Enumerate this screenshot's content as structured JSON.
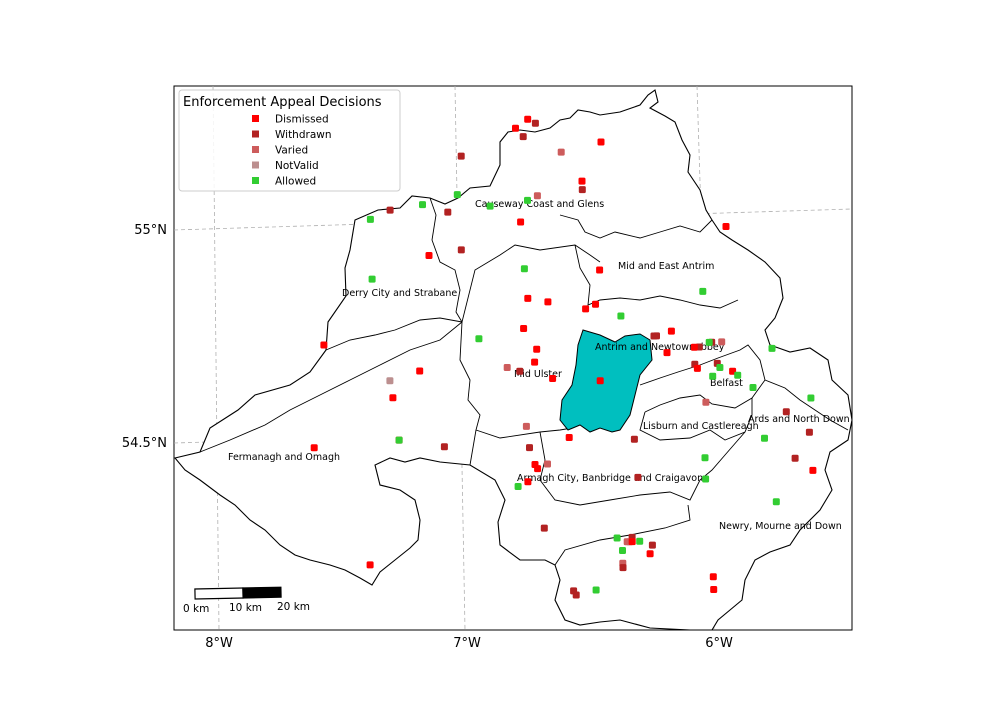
{
  "map": {
    "legend": {
      "title": "Enforcement Appeal Decisions",
      "items": [
        {
          "label": "Dismissed",
          "color": "#ff0000"
        },
        {
          "label": "Withdrawn",
          "color": "#b22222"
        },
        {
          "label": "Varied",
          "color": "#cd5c5c"
        },
        {
          "label": "NotValid",
          "color": "#bc8f8f"
        },
        {
          "label": "Allowed",
          "color": "#32cd32"
        }
      ]
    },
    "axes": {
      "lon_ticks": [
        "8°W",
        "7°W",
        "6°W"
      ],
      "lat_ticks": [
        "55°N",
        "54.5°N"
      ]
    },
    "scalebar": {
      "labels": [
        "0 km",
        "10 km",
        "20 km"
      ]
    },
    "highlight_color": "#00bfbf",
    "districts": [
      "Causeway Coast and Glens",
      "Mid and East Antrim",
      "Derry City and Strabane",
      "Antrim and Newtownabbey",
      "Mid Ulster",
      "Belfast",
      "Ards and North Down",
      "Lisburn and Castlereagh",
      "Fermanagh and Omagh",
      "Armagh City, Banbridge and Craigavon",
      "Newry, Mourne and Down"
    ],
    "points": [
      {
        "t": "Dismissed",
        "lon": -6.78,
        "lat": 55.21
      },
      {
        "t": "Dismissed",
        "lon": -6.73,
        "lat": 55.23
      },
      {
        "t": "Withdrawn",
        "lon": -6.7,
        "lat": 55.22
      },
      {
        "t": "Withdrawn",
        "lon": -6.75,
        "lat": 55.19
      },
      {
        "t": "Varied",
        "lon": -6.6,
        "lat": 55.15
      },
      {
        "t": "Dismissed",
        "lon": -6.44,
        "lat": 55.17
      },
      {
        "t": "Withdrawn",
        "lon": -7.0,
        "lat": 55.15
      },
      {
        "t": "Dismissed",
        "lon": -6.52,
        "lat": 55.08
      },
      {
        "t": "Withdrawn",
        "lon": -6.52,
        "lat": 55.06
      },
      {
        "t": "Allowed",
        "lon": -7.02,
        "lat": 55.06
      },
      {
        "t": "Varied",
        "lon": -6.7,
        "lat": 55.05
      },
      {
        "t": "Allowed",
        "lon": -6.74,
        "lat": 55.04
      },
      {
        "t": "Allowed",
        "lon": -6.89,
        "lat": 55.03
      },
      {
        "t": "Allowed",
        "lon": -7.16,
        "lat": 55.04
      },
      {
        "t": "Withdrawn",
        "lon": -7.29,
        "lat": 55.03
      },
      {
        "t": "Withdrawn",
        "lon": -7.06,
        "lat": 55.02
      },
      {
        "t": "Allowed",
        "lon": -7.37,
        "lat": 55.01
      },
      {
        "t": "Dismissed",
        "lon": -6.77,
        "lat": 54.99
      },
      {
        "t": "Dismissed",
        "lon": -5.95,
        "lat": 54.96
      },
      {
        "t": "Withdrawn",
        "lon": -7.01,
        "lat": 54.93
      },
      {
        "t": "Dismissed",
        "lon": -7.14,
        "lat": 54.92
      },
      {
        "t": "Allowed",
        "lon": -6.76,
        "lat": 54.88
      },
      {
        "t": "Allowed",
        "lon": -7.37,
        "lat": 54.87
      },
      {
        "t": "Dismissed",
        "lon": -6.46,
        "lat": 54.87
      },
      {
        "t": "Dismissed",
        "lon": -6.75,
        "lat": 54.81
      },
      {
        "t": "Dismissed",
        "lon": -6.67,
        "lat": 54.8
      },
      {
        "t": "Allowed",
        "lon": -6.05,
        "lat": 54.81
      },
      {
        "t": "Dismissed",
        "lon": -6.48,
        "lat": 54.79
      },
      {
        "t": "Dismissed",
        "lon": -6.52,
        "lat": 54.78
      },
      {
        "t": "Allowed",
        "lon": -6.38,
        "lat": 54.76
      },
      {
        "t": "Dismissed",
        "lon": -6.77,
        "lat": 54.74
      },
      {
        "t": "Allowed",
        "lon": -6.95,
        "lat": 54.72
      },
      {
        "t": "Dismissed",
        "lon": -7.57,
        "lat": 54.72
      },
      {
        "t": "Dismissed",
        "lon": -6.18,
        "lat": 54.72
      },
      {
        "t": "Withdrawn",
        "lon": -6.25,
        "lat": 54.71
      },
      {
        "t": "Withdrawn",
        "lon": -6.24,
        "lat": 54.71
      },
      {
        "t": "Dismissed",
        "lon": -6.72,
        "lat": 54.69
      },
      {
        "t": "Withdrawn",
        "lon": -6.07,
        "lat": 54.68
      },
      {
        "t": "Dismissed",
        "lon": -6.09,
        "lat": 54.68
      },
      {
        "t": "Withdrawn",
        "lon": -6.02,
        "lat": 54.69
      },
      {
        "t": "Varied",
        "lon": -5.98,
        "lat": 54.69
      },
      {
        "t": "Allowed",
        "lon": -6.03,
        "lat": 54.69
      },
      {
        "t": "Allowed",
        "lon": -5.78,
        "lat": 54.67
      },
      {
        "t": "Dismissed",
        "lon": -6.2,
        "lat": 54.67
      },
      {
        "t": "Dismissed",
        "lon": -6.73,
        "lat": 54.66
      },
      {
        "t": "Varied",
        "lon": -6.84,
        "lat": 54.65
      },
      {
        "t": "Withdrawn",
        "lon": -6.79,
        "lat": 54.64
      },
      {
        "t": "Dismissed",
        "lon": -7.19,
        "lat": 54.65
      },
      {
        "t": "Withdrawn",
        "lon": -6.09,
        "lat": 54.64
      },
      {
        "t": "Dismissed",
        "lon": -6.08,
        "lat": 54.63
      },
      {
        "t": "Withdrawn",
        "lon": -6.0,
        "lat": 54.64
      },
      {
        "t": "Allowed",
        "lon": -5.99,
        "lat": 54.63
      },
      {
        "t": "NotValid",
        "lon": -7.31,
        "lat": 54.63
      },
      {
        "t": "Dismissed",
        "lon": -6.66,
        "lat": 54.62
      },
      {
        "t": "Dismissed",
        "lon": -6.47,
        "lat": 54.61
      },
      {
        "t": "Allowed",
        "lon": -6.02,
        "lat": 54.61
      },
      {
        "t": "Dismissed",
        "lon": -5.94,
        "lat": 54.62
      },
      {
        "t": "Allowed",
        "lon": -5.92,
        "lat": 54.61
      },
      {
        "t": "Dismissed",
        "lon": -7.3,
        "lat": 54.59
      },
      {
        "t": "Allowed",
        "lon": -5.86,
        "lat": 54.58
      },
      {
        "t": "Varied",
        "lon": -6.05,
        "lat": 54.55
      },
      {
        "t": "Allowed",
        "lon": -5.63,
        "lat": 54.55
      },
      {
        "t": "Withdrawn",
        "lon": -5.73,
        "lat": 54.52
      },
      {
        "t": "Varied",
        "lon": -6.77,
        "lat": 54.51
      },
      {
        "t": "Dismissed",
        "lon": -7.28,
        "lat": 54.49
      },
      {
        "t": "Allowed",
        "lon": -7.28,
        "lat": 54.49
      },
      {
        "t": "Dismissed",
        "lon": -7.62,
        "lat": 54.48
      },
      {
        "t": "Dismissed",
        "lon": -6.6,
        "lat": 54.48
      },
      {
        "t": "Withdrawn",
        "lon": -7.1,
        "lat": 54.47
      },
      {
        "t": "Withdrawn",
        "lon": -6.34,
        "lat": 54.47
      },
      {
        "t": "Withdrawn",
        "lon": -5.64,
        "lat": 54.47
      },
      {
        "t": "Withdrawn",
        "lon": -6.76,
        "lat": 54.46
      },
      {
        "t": "Allowed",
        "lon": -5.82,
        "lat": 54.46
      },
      {
        "t": "Dismissed",
        "lon": -6.74,
        "lat": 54.42
      },
      {
        "t": "Varied",
        "lon": -6.69,
        "lat": 54.42
      },
      {
        "t": "Dismissed",
        "lon": -6.73,
        "lat": 54.41
      },
      {
        "t": "Allowed",
        "lon": -6.06,
        "lat": 54.42
      },
      {
        "t": "Withdrawn",
        "lon": -5.7,
        "lat": 54.41
      },
      {
        "t": "Dismissed",
        "lon": -6.77,
        "lat": 54.38
      },
      {
        "t": "Allowed",
        "lon": -6.81,
        "lat": 54.37
      },
      {
        "t": "Withdrawn",
        "lon": -6.33,
        "lat": 54.38
      },
      {
        "t": "Dismissed",
        "lon": -5.63,
        "lat": 54.38
      },
      {
        "t": "Allowed",
        "lon": -6.06,
        "lat": 54.37
      },
      {
        "t": "Allowed",
        "lon": -5.78,
        "lat": 54.31
      },
      {
        "t": "Withdrawn",
        "lon": -6.71,
        "lat": 54.27
      },
      {
        "t": "Allowed",
        "lon": -6.42,
        "lat": 54.24
      },
      {
        "t": "Varied",
        "lon": -6.38,
        "lat": 54.23
      },
      {
        "t": "Withdrawn",
        "lon": -6.36,
        "lat": 54.24
      },
      {
        "t": "Varied",
        "lon": -6.37,
        "lat": 54.23
      },
      {
        "t": "Allowed",
        "lon": -6.33,
        "lat": 54.23
      },
      {
        "t": "Dismissed",
        "lon": -6.36,
        "lat": 54.23
      },
      {
        "t": "Withdrawn",
        "lon": -6.28,
        "lat": 54.22
      },
      {
        "t": "Allowed",
        "lon": -6.4,
        "lat": 54.21
      },
      {
        "t": "Dismissed",
        "lon": -6.29,
        "lat": 54.2
      },
      {
        "t": "Dismissed",
        "lon": -7.41,
        "lat": 54.2
      },
      {
        "t": "Varied",
        "lon": -6.4,
        "lat": 54.18
      },
      {
        "t": "Withdrawn",
        "lon": -6.4,
        "lat": 54.17
      },
      {
        "t": "Dismissed",
        "lon": -6.04,
        "lat": 54.14
      },
      {
        "t": "Withdrawn",
        "lon": -6.6,
        "lat": 54.12
      },
      {
        "t": "Withdrawn",
        "lon": -6.59,
        "lat": 54.11
      },
      {
        "t": "Allowed",
        "lon": -6.51,
        "lat": 54.12
      },
      {
        "t": "Dismissed",
        "lon": -6.04,
        "lat": 54.11
      }
    ]
  }
}
